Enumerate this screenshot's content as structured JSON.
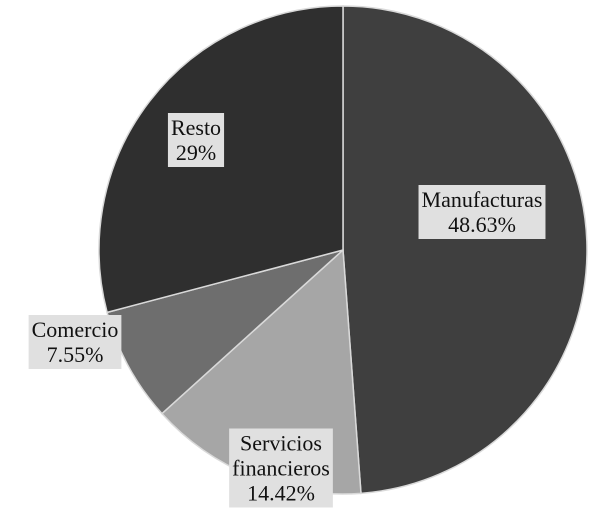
{
  "chart_data": {
    "type": "pie",
    "slices": [
      {
        "label_lines": [
          "Manufacturas",
          "48.63%"
        ],
        "value": 48.63,
        "color": "#3f3f3f"
      },
      {
        "label_lines": [
          "Servicios",
          "financieros",
          "14.42%"
        ],
        "value": 14.42,
        "color": "#a6a6a6"
      },
      {
        "label_lines": [
          "Comercio",
          "7.55%"
        ],
        "value": 7.55,
        "color": "#6e6e6e"
      },
      {
        "label_lines": [
          "Resto",
          "29%"
        ],
        "value": 29,
        "color": "#2f2f2f"
      }
    ],
    "start": "12 o'clock",
    "direction": "clockwise"
  }
}
